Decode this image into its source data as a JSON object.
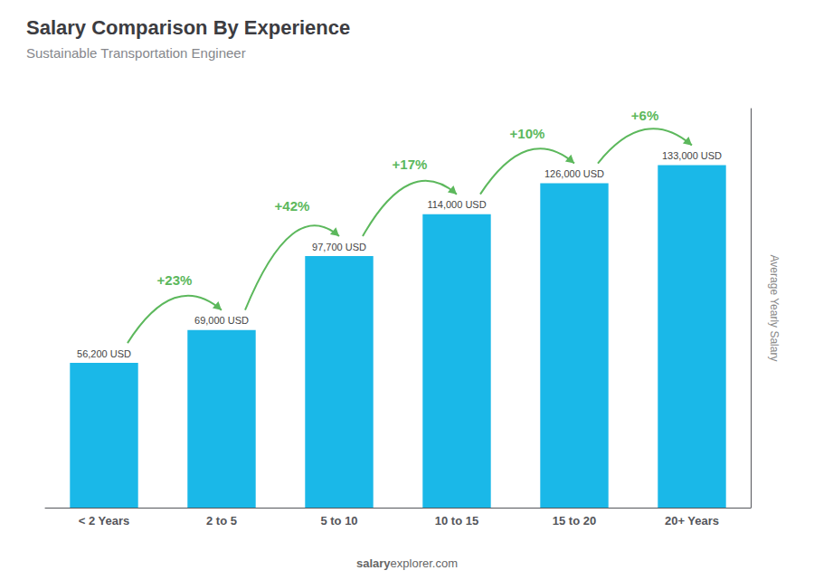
{
  "chart_data": {
    "type": "bar",
    "title": "Salary Comparison By Experience",
    "subtitle": "Sustainable Transportation Engineer",
    "categories": [
      "< 2 Years",
      "2 to 5",
      "5 to 10",
      "10 to 15",
      "15 to 20",
      "20+ Years"
    ],
    "values": [
      56200,
      69000,
      97700,
      114000,
      126000,
      133000
    ],
    "value_labels": [
      "56,200 USD",
      "69,000 USD",
      "97,700 USD",
      "114,000 USD",
      "126,000 USD",
      "133,000 USD"
    ],
    "data_labels": true,
    "color": "#1ab8e8",
    "ylabel": "Average Yearly Salary",
    "ylim": [
      0,
      155000
    ],
    "tick_labels": "x",
    "grid": false,
    "annotations": [
      "+23%",
      "+42%",
      "+17%",
      "+10%",
      "+6%"
    ],
    "watermark": [
      "salary",
      "explorer.com"
    ]
  }
}
